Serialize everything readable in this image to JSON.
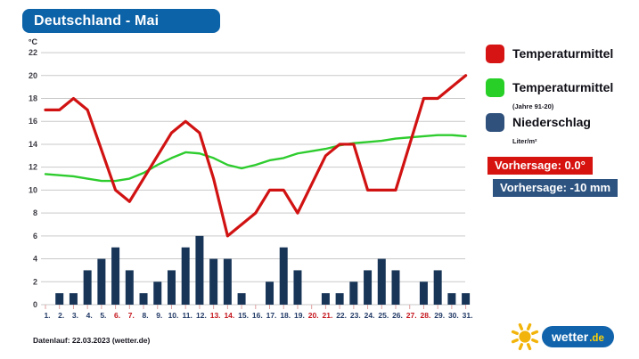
{
  "header": {
    "title": "Deutschland - Mai"
  },
  "legend": {
    "items": [
      {
        "label": "Temperaturmittel",
        "sub": "",
        "color": "#d61414"
      },
      {
        "label": "Temperaturmittel",
        "sub": "(Jahre 91-20)",
        "color": "#27cf27"
      },
      {
        "label": "Niederschlag",
        "sub": "Liter/m²",
        "color": "#30517c"
      }
    ]
  },
  "badges": {
    "temperature": "Vorhersage: 0.0°",
    "precipitation": "Vorhersage: -10 mm"
  },
  "footer": {
    "datenlauf": "Datenlauf: 22.03.2023 (wetter.de)"
  },
  "logo": {
    "brand": "wetter",
    "tld": ".de"
  },
  "colors": {
    "header_blue": "#0d63a8",
    "badge_red": "#d6130f",
    "badge_navy": "#2d5380",
    "logo_blue": "#1164ab",
    "logo_yellow": "#ffd103",
    "grid": "#c9c9c9",
    "tick": "#e09f9f",
    "day_label": "#223a66",
    "weekend_label": "#c4151c"
  },
  "chart_data": {
    "type": "line+bar",
    "title": "Deutschland - Mai",
    "ylabel": "°C",
    "ylim": [
      0,
      22
    ],
    "ytick_step": 2,
    "yticks": [
      0,
      2,
      4,
      6,
      8,
      10,
      12,
      14,
      16,
      18,
      20,
      22
    ],
    "grid": true,
    "legend_position": "right",
    "x": [
      1,
      2,
      3,
      4,
      5,
      6,
      7,
      8,
      9,
      10,
      11,
      12,
      13,
      14,
      15,
      16,
      17,
      18,
      19,
      20,
      21,
      22,
      23,
      24,
      25,
      26,
      27,
      28,
      29,
      30,
      31
    ],
    "x_label_suffix": ".",
    "weekend_days": [
      6,
      7,
      13,
      14,
      20,
      21,
      27,
      28
    ],
    "series": [
      {
        "name": "Temperaturmittel",
        "type": "line",
        "color": "#d11212",
        "values": [
          17,
          17,
          18,
          17,
          13.5,
          10,
          9,
          11,
          13,
          15,
          16,
          15,
          11,
          6,
          7,
          8,
          10,
          10,
          8,
          10.5,
          13,
          14,
          14,
          10,
          10,
          10,
          14,
          18,
          18,
          19,
          20
        ]
      },
      {
        "name": "Temperaturmittel (Jahre 91-20)",
        "type": "line",
        "color": "#2ecc2e",
        "values": [
          11.4,
          11.3,
          11.2,
          11.0,
          10.8,
          10.8,
          11.0,
          11.5,
          12.2,
          12.8,
          13.3,
          13.2,
          12.8,
          12.2,
          11.9,
          12.2,
          12.6,
          12.8,
          13.2,
          13.4,
          13.6,
          13.9,
          14.1,
          14.2,
          14.3,
          14.5,
          14.6,
          14.7,
          14.8,
          14.8,
          14.7
        ]
      },
      {
        "name": "Niederschlag",
        "type": "bar",
        "unit": "Liter/m²",
        "color": "#183558",
        "values": [
          0,
          1,
          1,
          3,
          4,
          5,
          3,
          1,
          2,
          3,
          5,
          6,
          4,
          4,
          1,
          0,
          2,
          5,
          3,
          0,
          1,
          1,
          2,
          3,
          4,
          3,
          0,
          2,
          3,
          1,
          1
        ]
      }
    ]
  }
}
